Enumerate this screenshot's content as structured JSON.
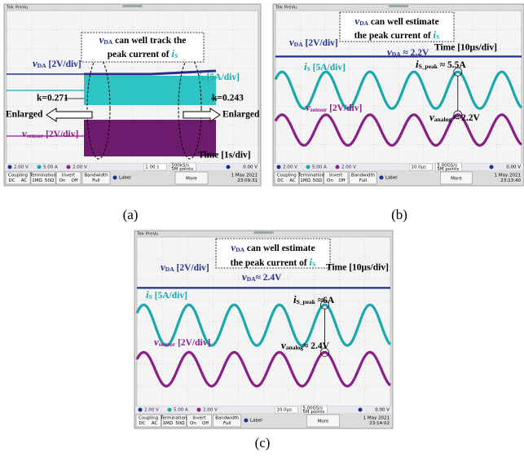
{
  "panels": [
    {
      "label": "(a)",
      "header": "Tek PreVu",
      "annotations": {
        "callout_1": [
          "v",
          "DA",
          " can well track the"
        ],
        "callout_2": [
          "peak current of ",
          "i",
          "S"
        ],
        "vda_label": [
          "v",
          "DA",
          " [2V/div]"
        ],
        "is_label": [
          "i",
          "S",
          " [5A/div]"
        ],
        "k_left": "k=0.271",
        "k_right": "k=0.243",
        "enlarged_left": "Enlarged",
        "enlarged_right": "Enlarged",
        "vsensor_label": [
          "v",
          "sensor",
          " [2V/div]"
        ],
        "time": "Time [1s/div]"
      },
      "status": {
        "ch1": "2.00 V",
        "ch2": "5.00 A",
        "ch3": "2.00 V",
        "timebase": "1.00 s",
        "rate": "500kS/s",
        "points": "5M points",
        "trigger": "0.00 V"
      },
      "menu": {
        "coupling": "Coupling",
        "dc": "DC",
        "ac": "AC",
        "termination": "Termination",
        "r1": "1MΩ",
        "r2": "50Ω",
        "invert": "Invert",
        "on": "On",
        "off": "Off",
        "bandwidth": "Bandwidth",
        "full": "Full",
        "label": "Label",
        "more": "More",
        "date": "1 May 2021",
        "clock": "23:09:31"
      }
    },
    {
      "label": "(b)",
      "header": "Tek PreVu",
      "annotations": {
        "callout_1": [
          "v",
          "DA",
          " can well estimate"
        ],
        "callout_2": [
          "the peak current of ",
          "i",
          "S"
        ],
        "vda_label": [
          "v",
          "DA",
          " [2V/div]"
        ],
        "vda_value": [
          "v",
          "DA",
          " ≈ 2.2V"
        ],
        "time": "Time [10μs/div]",
        "is_label": [
          "i",
          "S",
          " [5A/div]"
        ],
        "is_peak": [
          "i",
          "S_peak",
          " ≈ 5.5A"
        ],
        "vsensor_label": [
          "v",
          "sensor",
          " [2V/div]"
        ],
        "vanalog": [
          "v",
          "analog",
          " ≈ 2.2V"
        ]
      },
      "status": {
        "ch1": "2.00 V",
        "ch2": "5.00 A",
        "ch3": "2.00 V",
        "timebase": "10.0μs",
        "rate": "5.00GS/s",
        "points": "5M points",
        "trigger": "0.00 V"
      },
      "menu": {
        "coupling": "Coupling",
        "dc": "DC",
        "ac": "AC",
        "termination": "Termination",
        "r1": "1MΩ",
        "r2": "50Ω",
        "invert": "Invert",
        "on": "On",
        "off": "Off",
        "bandwidth": "Bandwidth",
        "full": "Full",
        "label": "Label",
        "more": "More",
        "date": "1 May 2021",
        "clock": "23:13:40"
      }
    },
    {
      "label": "(c)",
      "header": "Tek PreVu",
      "annotations": {
        "callout_1": [
          "v",
          "DA",
          " can well estimate"
        ],
        "callout_2": [
          "the peak current of ",
          "i",
          "S"
        ],
        "vda_label": [
          "v",
          "DA",
          " [2V/div]"
        ],
        "vda_value": [
          "v",
          "DA",
          "≈ 2.4V"
        ],
        "time": "Time [10μs/div]",
        "is_label": [
          "i",
          "S",
          " [5A/div]"
        ],
        "is_peak": [
          "i",
          "S_peak",
          " ≈6A"
        ],
        "vsensor_label": [
          "v",
          "sensor",
          " [2V/div]"
        ],
        "vanalog": [
          "v",
          "analog",
          "≈ 2.4V"
        ]
      },
      "status": {
        "ch1": "2.00 V",
        "ch2": "5.00 A",
        "ch3": "2.00 V",
        "timebase": "10.0μs",
        "rate": "5.00GS/s",
        "points": "5M points",
        "trigger": "0.00 V"
      },
      "menu": {
        "coupling": "Coupling",
        "dc": "DC",
        "ac": "AC",
        "termination": "Termination",
        "r1": "1MΩ",
        "r2": "50Ω",
        "invert": "Invert",
        "on": "On",
        "off": "Off",
        "bandwidth": "Bandwidth",
        "full": "Full",
        "label": "Label",
        "more": "More",
        "date": "1 May 2021",
        "clock": "23:14:02"
      }
    }
  ]
}
